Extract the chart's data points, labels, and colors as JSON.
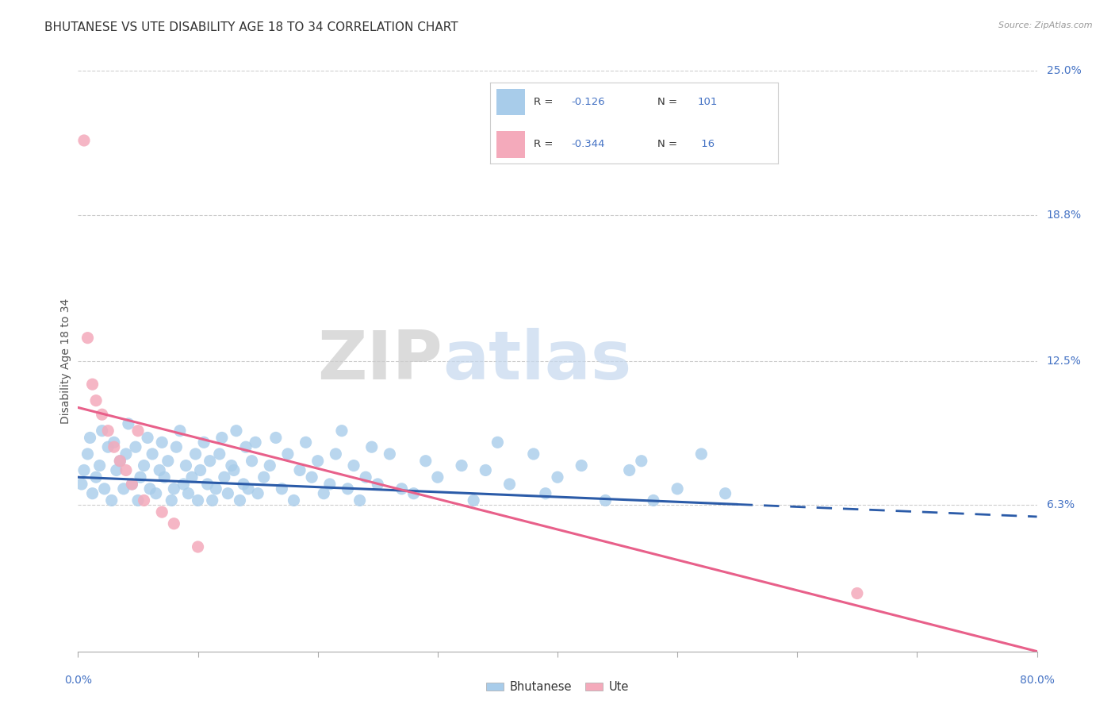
{
  "title": "BHUTANESE VS UTE DISABILITY AGE 18 TO 34 CORRELATION CHART",
  "source": "Source: ZipAtlas.com",
  "ylabel": "Disability Age 18 to 34",
  "right_yticks": [
    6.3,
    12.5,
    18.8,
    25.0
  ],
  "right_ytick_labels": [
    "6.3%",
    "12.5%",
    "18.8%",
    "25.0%"
  ],
  "watermark_zip": "ZIP",
  "watermark_atlas": "atlas",
  "legend_blue_r": "-0.126",
  "legend_blue_n": "101",
  "legend_pink_r": "-0.344",
  "legend_pink_n": " 16",
  "blue_color": "#A8CCEA",
  "pink_color": "#F4AABB",
  "blue_line_color": "#2B5BA8",
  "pink_line_color": "#E8608A",
  "blue_scatter": [
    [
      0.3,
      7.2
    ],
    [
      0.5,
      7.8
    ],
    [
      0.8,
      8.5
    ],
    [
      1.0,
      9.2
    ],
    [
      1.2,
      6.8
    ],
    [
      1.5,
      7.5
    ],
    [
      1.8,
      8.0
    ],
    [
      2.0,
      9.5
    ],
    [
      2.2,
      7.0
    ],
    [
      2.5,
      8.8
    ],
    [
      2.8,
      6.5
    ],
    [
      3.0,
      9.0
    ],
    [
      3.2,
      7.8
    ],
    [
      3.5,
      8.2
    ],
    [
      3.8,
      7.0
    ],
    [
      4.0,
      8.5
    ],
    [
      4.2,
      9.8
    ],
    [
      4.5,
      7.2
    ],
    [
      4.8,
      8.8
    ],
    [
      5.0,
      6.5
    ],
    [
      5.2,
      7.5
    ],
    [
      5.5,
      8.0
    ],
    [
      5.8,
      9.2
    ],
    [
      6.0,
      7.0
    ],
    [
      6.2,
      8.5
    ],
    [
      6.5,
      6.8
    ],
    [
      6.8,
      7.8
    ],
    [
      7.0,
      9.0
    ],
    [
      7.2,
      7.5
    ],
    [
      7.5,
      8.2
    ],
    [
      7.8,
      6.5
    ],
    [
      8.0,
      7.0
    ],
    [
      8.2,
      8.8
    ],
    [
      8.5,
      9.5
    ],
    [
      8.8,
      7.2
    ],
    [
      9.0,
      8.0
    ],
    [
      9.2,
      6.8
    ],
    [
      9.5,
      7.5
    ],
    [
      9.8,
      8.5
    ],
    [
      10.0,
      6.5
    ],
    [
      10.2,
      7.8
    ],
    [
      10.5,
      9.0
    ],
    [
      10.8,
      7.2
    ],
    [
      11.0,
      8.2
    ],
    [
      11.2,
      6.5
    ],
    [
      11.5,
      7.0
    ],
    [
      11.8,
      8.5
    ],
    [
      12.0,
      9.2
    ],
    [
      12.2,
      7.5
    ],
    [
      12.5,
      6.8
    ],
    [
      12.8,
      8.0
    ],
    [
      13.0,
      7.8
    ],
    [
      13.2,
      9.5
    ],
    [
      13.5,
      6.5
    ],
    [
      13.8,
      7.2
    ],
    [
      14.0,
      8.8
    ],
    [
      14.2,
      7.0
    ],
    [
      14.5,
      8.2
    ],
    [
      14.8,
      9.0
    ],
    [
      15.0,
      6.8
    ],
    [
      15.5,
      7.5
    ],
    [
      16.0,
      8.0
    ],
    [
      16.5,
      9.2
    ],
    [
      17.0,
      7.0
    ],
    [
      17.5,
      8.5
    ],
    [
      18.0,
      6.5
    ],
    [
      18.5,
      7.8
    ],
    [
      19.0,
      9.0
    ],
    [
      19.5,
      7.5
    ],
    [
      20.0,
      8.2
    ],
    [
      20.5,
      6.8
    ],
    [
      21.0,
      7.2
    ],
    [
      21.5,
      8.5
    ],
    [
      22.0,
      9.5
    ],
    [
      22.5,
      7.0
    ],
    [
      23.0,
      8.0
    ],
    [
      23.5,
      6.5
    ],
    [
      24.0,
      7.5
    ],
    [
      24.5,
      8.8
    ],
    [
      25.0,
      7.2
    ],
    [
      26.0,
      8.5
    ],
    [
      27.0,
      7.0
    ],
    [
      28.0,
      6.8
    ],
    [
      29.0,
      8.2
    ],
    [
      30.0,
      7.5
    ],
    [
      32.0,
      8.0
    ],
    [
      33.0,
      6.5
    ],
    [
      34.0,
      7.8
    ],
    [
      35.0,
      9.0
    ],
    [
      36.0,
      7.2
    ],
    [
      38.0,
      8.5
    ],
    [
      39.0,
      6.8
    ],
    [
      40.0,
      7.5
    ],
    [
      42.0,
      8.0
    ],
    [
      44.0,
      6.5
    ],
    [
      46.0,
      7.8
    ],
    [
      47.0,
      8.2
    ],
    [
      48.0,
      6.5
    ],
    [
      50.0,
      7.0
    ],
    [
      52.0,
      8.5
    ],
    [
      54.0,
      6.8
    ]
  ],
  "pink_scatter": [
    [
      0.5,
      22.0
    ],
    [
      0.8,
      13.5
    ],
    [
      1.2,
      11.5
    ],
    [
      1.5,
      10.8
    ],
    [
      2.0,
      10.2
    ],
    [
      2.5,
      9.5
    ],
    [
      3.0,
      8.8
    ],
    [
      3.5,
      8.2
    ],
    [
      4.0,
      7.8
    ],
    [
      4.5,
      7.2
    ],
    [
      5.0,
      9.5
    ],
    [
      5.5,
      6.5
    ],
    [
      7.0,
      6.0
    ],
    [
      8.0,
      5.5
    ],
    [
      10.0,
      4.5
    ],
    [
      65.0,
      2.5
    ]
  ],
  "xlim": [
    0,
    80
  ],
  "ylim": [
    0,
    25
  ],
  "blue_line_y_at_0": 7.5,
  "blue_line_y_at_80": 5.8,
  "blue_solid_x_end": 55,
  "pink_line_y_at_0": 10.5,
  "pink_line_y_at_80": 0.0
}
